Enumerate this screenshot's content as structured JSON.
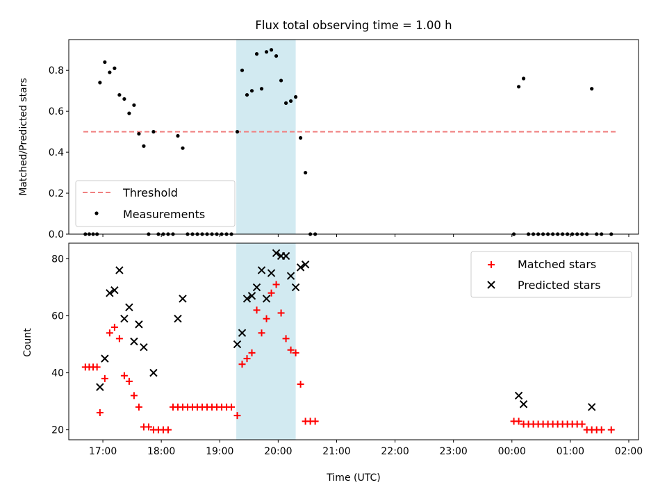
{
  "figure": {
    "title": "Flux total observing time = 1.00 h",
    "xlabel": "Time (UTC)",
    "x_ticks": [
      "17:00",
      "18:00",
      "19:00",
      "20:00",
      "21:00",
      "22:00",
      "23:00",
      "00:00",
      "01:00",
      "02:00"
    ],
    "highlight_color": "#add8e6",
    "highlight_start": "19:17",
    "highlight_end": "20:18"
  },
  "chart_data": [
    {
      "type": "scatter",
      "ylabel": "Matched/Predicted stars",
      "ylim": [
        0,
        0.95
      ],
      "y_ticks": [
        "0.0",
        "0.2",
        "0.4",
        "0.6",
        "0.8"
      ],
      "x_range": [
        "16:25",
        "02:10"
      ],
      "threshold": {
        "name": "Threshold",
        "value": 0.5,
        "x_start": "16:40",
        "x_end": "01:47",
        "color": "#f08080",
        "style": "dashed"
      },
      "legend": {
        "location": "lower-left",
        "entries": [
          "Threshold",
          "Measurements"
        ]
      },
      "series": [
        {
          "name": "Measurements",
          "color": "#000000",
          "marker": "dot",
          "points": [
            [
              "16:42",
              0
            ],
            [
              "16:46",
              0
            ],
            [
              "16:50",
              0
            ],
            [
              "16:54",
              0
            ],
            [
              "16:57",
              0.74
            ],
            [
              "17:02",
              0.84
            ],
            [
              "17:07",
              0.79
            ],
            [
              "17:12",
              0.81
            ],
            [
              "17:17",
              0.68
            ],
            [
              "17:22",
              0.66
            ],
            [
              "17:27",
              0.59
            ],
            [
              "17:32",
              0.63
            ],
            [
              "17:37",
              0.49
            ],
            [
              "17:42",
              0.43
            ],
            [
              "17:47",
              0
            ],
            [
              "17:52",
              0.5
            ],
            [
              "17:57",
              0
            ],
            [
              "18:02",
              0
            ],
            [
              "18:07",
              0
            ],
            [
              "18:12",
              0
            ],
            [
              "18:17",
              0.48
            ],
            [
              "18:22",
              0.42
            ],
            [
              "18:27",
              0
            ],
            [
              "18:32",
              0
            ],
            [
              "18:37",
              0
            ],
            [
              "18:42",
              0
            ],
            [
              "18:47",
              0
            ],
            [
              "18:52",
              0
            ],
            [
              "18:57",
              0
            ],
            [
              "19:02",
              0
            ],
            [
              "19:07",
              0
            ],
            [
              "19:12",
              0
            ],
            [
              "19:18",
              0.5
            ],
            [
              "19:23",
              0.8
            ],
            [
              "19:28",
              0.68
            ],
            [
              "19:33",
              0.7
            ],
            [
              "19:38",
              0.88
            ],
            [
              "19:43",
              0.71
            ],
            [
              "19:48",
              0.89
            ],
            [
              "19:53",
              0.9
            ],
            [
              "19:58",
              0.87
            ],
            [
              "20:03",
              0.75
            ],
            [
              "20:08",
              0.64
            ],
            [
              "20:13",
              0.65
            ],
            [
              "20:18",
              0.67
            ],
            [
              "20:23",
              0.47
            ],
            [
              "20:28",
              0.3
            ],
            [
              "20:33",
              0
            ],
            [
              "20:38",
              0
            ],
            [
              "00:02",
              0
            ],
            [
              "00:07",
              0.72
            ],
            [
              "00:12",
              0.76
            ],
            [
              "00:17",
              0
            ],
            [
              "00:22",
              0
            ],
            [
              "00:27",
              0
            ],
            [
              "00:32",
              0
            ],
            [
              "00:37",
              0
            ],
            [
              "00:42",
              0
            ],
            [
              "00:47",
              0
            ],
            [
              "00:52",
              0
            ],
            [
              "00:57",
              0
            ],
            [
              "01:02",
              0
            ],
            [
              "01:07",
              0
            ],
            [
              "01:12",
              0
            ],
            [
              "01:17",
              0
            ],
            [
              "01:22",
              0.71
            ],
            [
              "01:27",
              0
            ],
            [
              "01:32",
              0
            ],
            [
              "01:42",
              0
            ]
          ]
        }
      ]
    },
    {
      "type": "scatter",
      "ylabel": "Count",
      "ylim": [
        16.5,
        85.5
      ],
      "y_ticks": [
        "20",
        "40",
        "60",
        "80"
      ],
      "x_range": [
        "16:25",
        "02:10"
      ],
      "legend": {
        "location": "upper-right",
        "entries": [
          "Matched stars",
          "Predicted stars"
        ]
      },
      "series": [
        {
          "name": "Matched stars",
          "color": "#ff0000",
          "marker": "plus",
          "points": [
            [
              "16:42",
              42
            ],
            [
              "16:46",
              42
            ],
            [
              "16:50",
              42
            ],
            [
              "16:54",
              42
            ],
            [
              "16:57",
              26
            ],
            [
              "17:02",
              38
            ],
            [
              "17:07",
              54
            ],
            [
              "17:12",
              56
            ],
            [
              "17:17",
              52
            ],
            [
              "17:22",
              39
            ],
            [
              "17:27",
              37
            ],
            [
              "17:32",
              32
            ],
            [
              "17:37",
              28
            ],
            [
              "17:42",
              21
            ],
            [
              "17:47",
              21
            ],
            [
              "17:52",
              20
            ],
            [
              "17:57",
              20
            ],
            [
              "18:02",
              20
            ],
            [
              "18:07",
              20
            ],
            [
              "18:12",
              28
            ],
            [
              "18:17",
              28
            ],
            [
              "18:22",
              28
            ],
            [
              "18:27",
              28
            ],
            [
              "18:32",
              28
            ],
            [
              "18:37",
              28
            ],
            [
              "18:42",
              28
            ],
            [
              "18:47",
              28
            ],
            [
              "18:52",
              28
            ],
            [
              "18:57",
              28
            ],
            [
              "19:02",
              28
            ],
            [
              "19:07",
              28
            ],
            [
              "19:12",
              28
            ],
            [
              "19:18",
              25
            ],
            [
              "19:23",
              43
            ],
            [
              "19:28",
              45
            ],
            [
              "19:33",
              47
            ],
            [
              "19:38",
              62
            ],
            [
              "19:43",
              54
            ],
            [
              "19:48",
              59
            ],
            [
              "19:53",
              68
            ],
            [
              "19:58",
              71
            ],
            [
              "20:03",
              61
            ],
            [
              "20:08",
              52
            ],
            [
              "20:13",
              48
            ],
            [
              "20:18",
              47
            ],
            [
              "20:23",
              36
            ],
            [
              "20:28",
              23
            ],
            [
              "20:33",
              23
            ],
            [
              "20:38",
              23
            ],
            [
              "00:02",
              23
            ],
            [
              "00:07",
              23
            ],
            [
              "00:12",
              22
            ],
            [
              "00:17",
              22
            ],
            [
              "00:22",
              22
            ],
            [
              "00:27",
              22
            ],
            [
              "00:32",
              22
            ],
            [
              "00:37",
              22
            ],
            [
              "00:42",
              22
            ],
            [
              "00:47",
              22
            ],
            [
              "00:52",
              22
            ],
            [
              "00:57",
              22
            ],
            [
              "01:02",
              22
            ],
            [
              "01:07",
              22
            ],
            [
              "01:12",
              22
            ],
            [
              "01:17",
              20
            ],
            [
              "01:22",
              20
            ],
            [
              "01:27",
              20
            ],
            [
              "01:32",
              20
            ],
            [
              "01:42",
              20
            ]
          ]
        },
        {
          "name": "Predicted stars",
          "color": "#000000",
          "marker": "x",
          "points": [
            [
              "16:57",
              35
            ],
            [
              "17:02",
              45
            ],
            [
              "17:07",
              68
            ],
            [
              "17:12",
              69
            ],
            [
              "17:17",
              76
            ],
            [
              "17:22",
              59
            ],
            [
              "17:27",
              63
            ],
            [
              "17:32",
              51
            ],
            [
              "17:37",
              57
            ],
            [
              "17:42",
              49
            ],
            [
              "17:52",
              40
            ],
            [
              "18:17",
              59
            ],
            [
              "18:22",
              66
            ],
            [
              "19:18",
              50
            ],
            [
              "19:23",
              54
            ],
            [
              "19:28",
              66
            ],
            [
              "19:33",
              67
            ],
            [
              "19:38",
              70
            ],
            [
              "19:43",
              76
            ],
            [
              "19:48",
              66
            ],
            [
              "19:53",
              75
            ],
            [
              "19:58",
              82
            ],
            [
              "20:03",
              81
            ],
            [
              "20:08",
              81
            ],
            [
              "20:13",
              74
            ],
            [
              "20:18",
              70
            ],
            [
              "20:23",
              77
            ],
            [
              "20:28",
              78
            ],
            [
              "00:07",
              32
            ],
            [
              "00:12",
              29
            ],
            [
              "01:22",
              28
            ]
          ]
        }
      ]
    }
  ]
}
